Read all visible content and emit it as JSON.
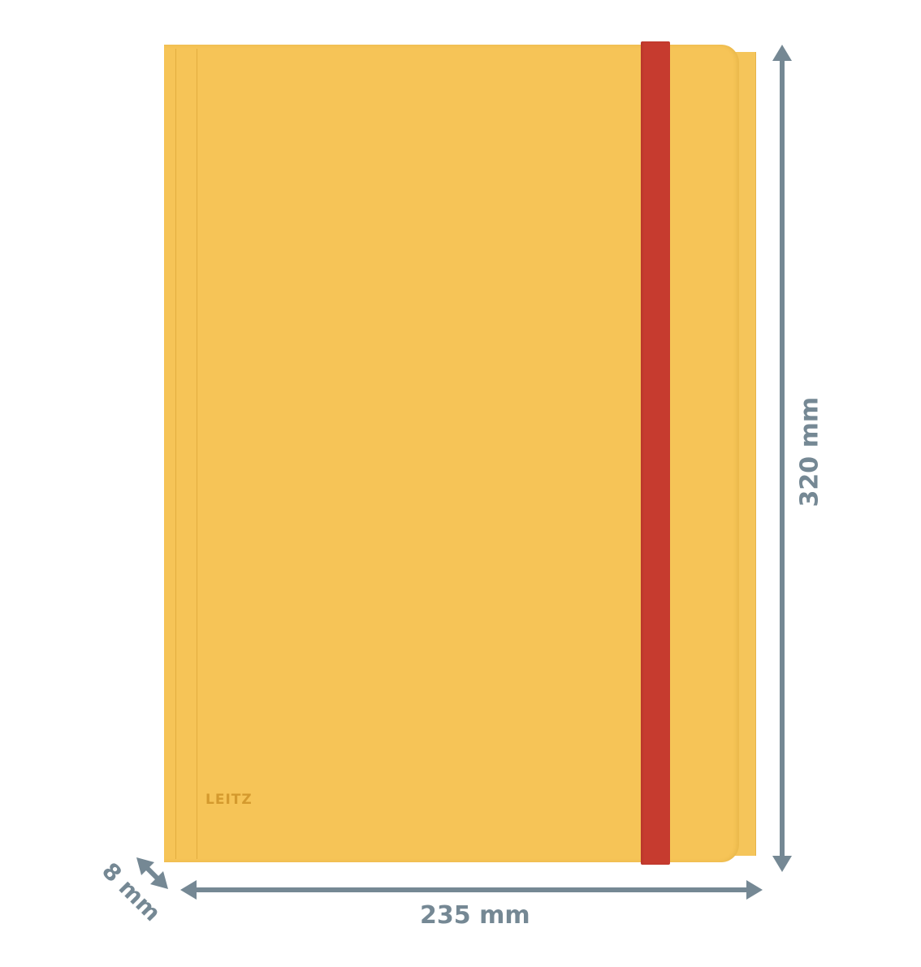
{
  "product": {
    "brand_logo": "LEITZ",
    "cover_color": "#f6c457",
    "band_color": "#c63b2f"
  },
  "dimensions": {
    "width_label": "235 mm",
    "height_label": "320 mm",
    "depth_label": "8 mm",
    "arrow_color": "#758894"
  }
}
